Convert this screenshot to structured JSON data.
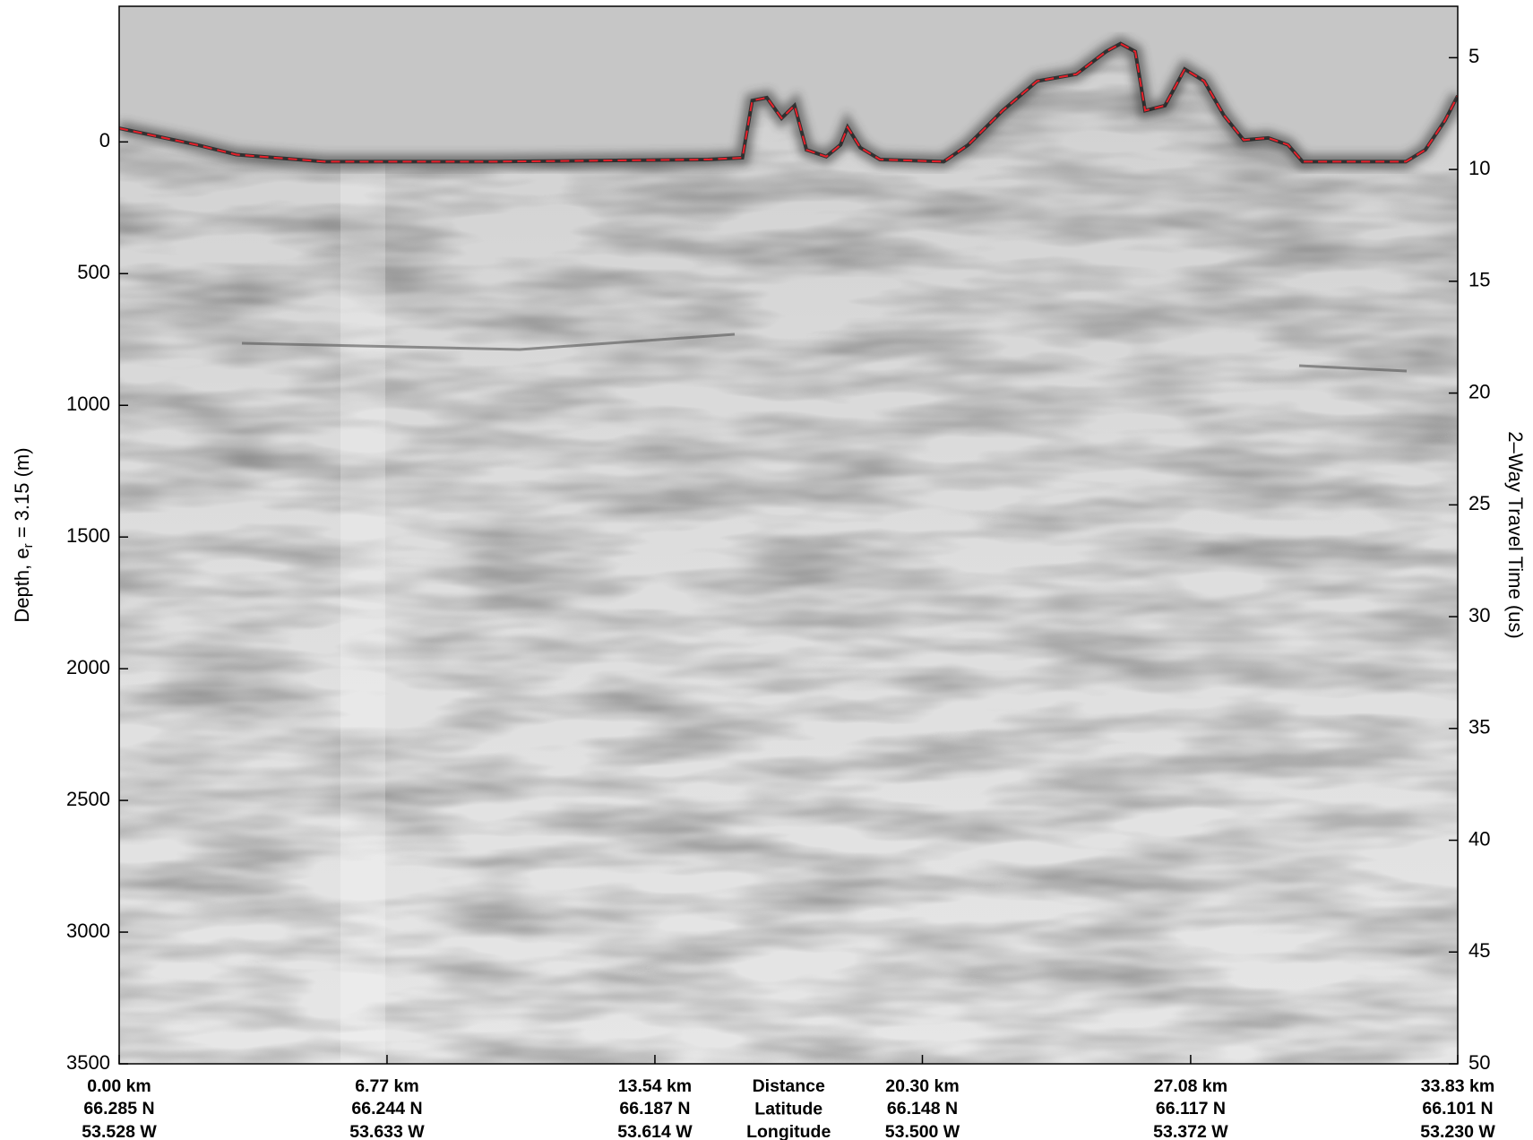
{
  "chart_data": {
    "type": "line",
    "ylabel": {
      "text": "Depth, e",
      "subscript": "r",
      "suffix": " = 3.15 (m)"
    },
    "y2label": "2–Way Travel Time (us)",
    "x_row_labels": [
      "Distance",
      "Latitude",
      "Longitude"
    ],
    "xlim": [
      0,
      33.83
    ],
    "xticks": [
      {
        "value": 0,
        "label": "0.00 km"
      },
      {
        "value": 6.77,
        "label": "6.77 km"
      },
      {
        "value": 13.54,
        "label": "13.54 km"
      },
      {
        "value": 20.3,
        "label": "20.30 km"
      },
      {
        "value": 27.08,
        "label": "27.08 km"
      },
      {
        "value": 33.83,
        "label": "33.83 km"
      }
    ],
    "xtick_latitudes": [
      "66.285 N",
      "66.244 N",
      "66.187 N",
      "66.148 N",
      "66.117 N",
      "66.101 N"
    ],
    "xtick_longitudes": [
      "53.528 W",
      "53.633 W",
      "53.614 W",
      "53.500 W",
      "53.372 W",
      "53.230 W"
    ],
    "ylim": [
      -515,
      3500
    ],
    "yticks": [
      0,
      500,
      1000,
      1500,
      2000,
      2500,
      3000,
      3500
    ],
    "y2lim": [
      2.7,
      50
    ],
    "y2ticks": [
      5,
      10,
      15,
      20,
      25,
      30,
      35,
      40,
      45,
      50
    ],
    "y_inverted": true,
    "x": [
      0,
      1.96,
      2.96,
      5.19,
      9.41,
      14.88,
      15.75,
      16.0,
      16.37,
      16.74,
      17.07,
      17.37,
      17.87,
      18.23,
      18.41,
      18.73,
      19.23,
      20.84,
      21.46,
      22.33,
      23.2,
      24.19,
      24.94,
      25.31,
      25.68,
      25.93,
      26.43,
      26.93,
      27.42,
      27.92,
      28.42,
      29.04,
      29.54,
      29.91,
      32.52,
      33.01,
      33.51,
      33.83
    ],
    "series": [
      {
        "color": "#e8202a",
        "dashed": true,
        "values": [
          -52,
          11,
          48,
          75,
          75,
          67,
          60,
          -157,
          -168,
          -90,
          -138,
          30,
          56,
          11,
          -56,
          22,
          67,
          75,
          11,
          -119,
          -231,
          -257,
          -343,
          -373,
          -343,
          -119,
          -138,
          -276,
          -231,
          -101,
          -7,
          -15,
          11,
          75,
          75,
          30,
          -82,
          -175
        ]
      }
    ]
  }
}
